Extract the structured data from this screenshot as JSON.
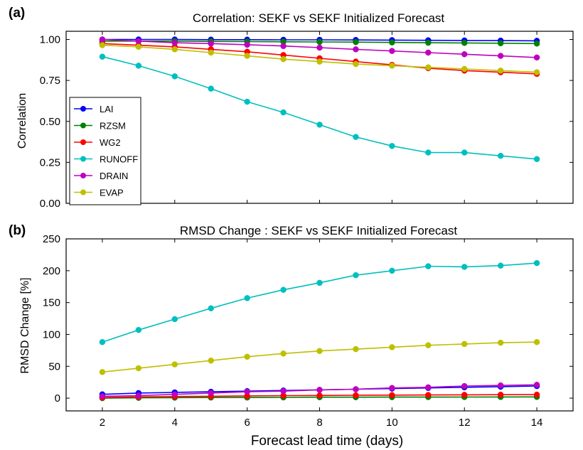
{
  "panels": [
    {
      "panel_label": "(a)",
      "title": "Correlation: SEKF vs SEKF Initialized Forecast",
      "ylabel": "Correlation"
    },
    {
      "panel_label": "(b)",
      "title": "RMSD Change : SEKF vs SEKF Initialized Forecast",
      "ylabel": "RMSD Change [%]"
    }
  ],
  "xlabel": "Forecast lead time (days)",
  "chart_data": [
    {
      "type": "line",
      "title": "Correlation: SEKF vs SEKF Initialized Forecast",
      "xlabel": "",
      "ylabel": "Correlation",
      "x": [
        2,
        3,
        4,
        5,
        6,
        7,
        8,
        9,
        10,
        11,
        12,
        13,
        14
      ],
      "xlim": [
        1,
        15
      ],
      "ylim": [
        0,
        1.05
      ],
      "yticks": [
        0.0,
        0.25,
        0.5,
        0.75,
        1.0
      ],
      "ytick_labels": [
        "0.00",
        "0.25",
        "0.50",
        "0.75",
        "1.00"
      ],
      "xticks": [
        2,
        4,
        6,
        8,
        10,
        12,
        14
      ],
      "xtick_labels": [
        "",
        "",
        "",
        "",
        "",
        "",
        ""
      ],
      "grid": false,
      "legend_position": "center-left",
      "series": [
        {
          "name": "LAI",
          "color": "#0000ff",
          "values": [
            1.0,
            1.0,
            1.0,
            0.999,
            0.999,
            0.998,
            0.998,
            0.997,
            0.996,
            0.995,
            0.994,
            0.993,
            0.992
          ]
        },
        {
          "name": "RZSM",
          "color": "#008000",
          "values": [
            0.99,
            0.99,
            0.99,
            0.988,
            0.987,
            0.986,
            0.985,
            0.984,
            0.982,
            0.98,
            0.979,
            0.977,
            0.975
          ]
        },
        {
          "name": "WG2",
          "color": "#ff0000",
          "values": [
            0.975,
            0.965,
            0.955,
            0.94,
            0.925,
            0.905,
            0.885,
            0.865,
            0.845,
            0.825,
            0.81,
            0.8,
            0.79
          ]
        },
        {
          "name": "RUNOFF",
          "color": "#00bfbf",
          "values": [
            0.895,
            0.84,
            0.775,
            0.7,
            0.62,
            0.555,
            0.48,
            0.405,
            0.35,
            0.31,
            0.31,
            0.29,
            0.27
          ]
        },
        {
          "name": "DRAIN",
          "color": "#bf00bf",
          "values": [
            1.0,
            0.99,
            0.98,
            0.975,
            0.968,
            0.96,
            0.95,
            0.94,
            0.93,
            0.92,
            0.91,
            0.9,
            0.89
          ]
        },
        {
          "name": "EVAP",
          "color": "#bfbf00",
          "values": [
            0.965,
            0.955,
            0.94,
            0.92,
            0.9,
            0.88,
            0.865,
            0.85,
            0.84,
            0.83,
            0.82,
            0.81,
            0.8
          ]
        }
      ]
    },
    {
      "type": "line",
      "title": "RMSD Change : SEKF vs SEKF Initialized Forecast",
      "xlabel": "Forecast lead time (days)",
      "ylabel": "RMSD Change [%]",
      "x": [
        2,
        3,
        4,
        5,
        6,
        7,
        8,
        9,
        10,
        11,
        12,
        13,
        14
      ],
      "xlim": [
        1,
        15
      ],
      "ylim": [
        -20,
        250
      ],
      "yticks": [
        0,
        50,
        100,
        150,
        200,
        250
      ],
      "ytick_labels": [
        "0",
        "50",
        "100",
        "150",
        "200",
        "250"
      ],
      "xticks": [
        2,
        4,
        6,
        8,
        10,
        12,
        14
      ],
      "xtick_labels": [
        "2",
        "4",
        "6",
        "8",
        "10",
        "12",
        "14"
      ],
      "grid": false,
      "series": [
        {
          "color": "#0000ff",
          "values": [
            6,
            8,
            9,
            10,
            11,
            12,
            13,
            14,
            15,
            16,
            17,
            18,
            19
          ]
        },
        {
          "color": "#008000",
          "values": [
            0,
            0.5,
            0.8,
            1,
            1,
            1.2,
            1.5,
            1.5,
            1.6,
            1.7,
            1.8,
            1.9,
            2
          ]
        },
        {
          "color": "#ff0000",
          "values": [
            1,
            2,
            2.5,
            3,
            3.5,
            4,
            4.2,
            4.5,
            4.8,
            5,
            5.2,
            5.4,
            5.5
          ]
        },
        {
          "color": "#00bfbf",
          "values": [
            88,
            107,
            124,
            141,
            157,
            170,
            181,
            193,
            200,
            207,
            206,
            208,
            212
          ]
        },
        {
          "color": "#bf00bf",
          "values": [
            3,
            4,
            6,
            8,
            10,
            11,
            13,
            14,
            16,
            17,
            19,
            20,
            21
          ]
        },
        {
          "color": "#bfbf00",
          "values": [
            41,
            47,
            53,
            59,
            65,
            70,
            74,
            77,
            80,
            83,
            85,
            87,
            88
          ]
        }
      ]
    }
  ]
}
